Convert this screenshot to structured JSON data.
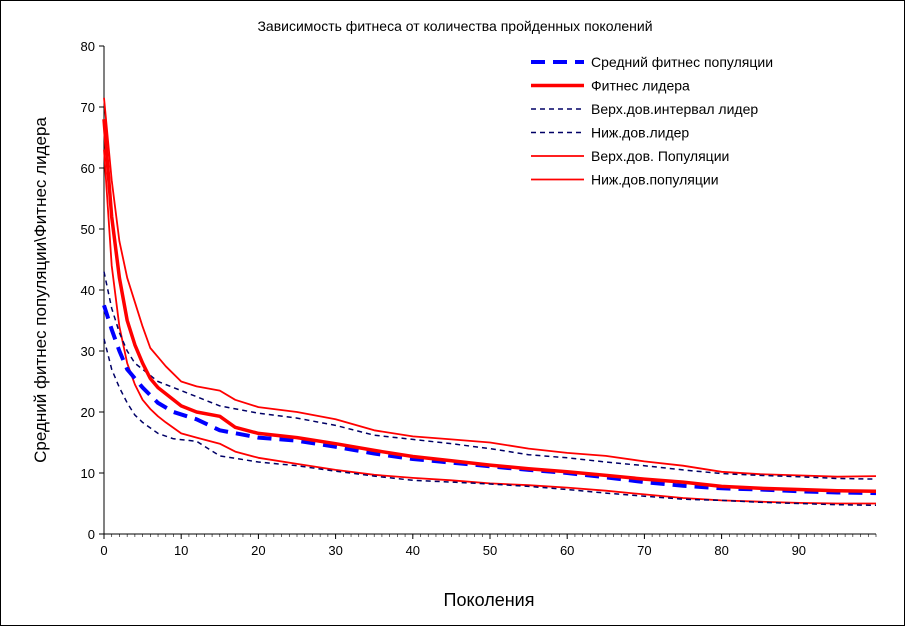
{
  "chart_data": {
    "type": "line",
    "title": "Зависимость фитнеса от количества пройденных поколений",
    "xlabel": "Поколения",
    "ylabel": "Средний фитнес популяции\\Фитнес лидера",
    "xlim": [
      0,
      100
    ],
    "ylim": [
      0,
      80
    ],
    "xticks": [
      "0",
      "10",
      "20",
      "30",
      "40",
      "50",
      "60",
      "70",
      "80",
      "90"
    ],
    "yticks": [
      "0",
      "10",
      "20",
      "30",
      "40",
      "50",
      "60",
      "70",
      "80"
    ],
    "grid": false,
    "legend_position": "top-right",
    "series": [
      {
        "name": "Средний фитнес популяции",
        "color": "#0000ff",
        "style": "dashed-thick",
        "x": [
          0,
          1,
          2,
          3,
          5,
          7,
          9,
          12,
          15,
          20,
          25,
          30,
          35,
          40,
          45,
          50,
          55,
          60,
          65,
          70,
          75,
          80,
          85,
          90,
          95,
          100
        ],
        "y": [
          37.5,
          33.5,
          30,
          27,
          24,
          21.5,
          20,
          18.8,
          17,
          15.8,
          15.3,
          14.3,
          13.2,
          12.3,
          11.7,
          11.1,
          10.5,
          10,
          9.3,
          8.5,
          7.9,
          7.5,
          7.3,
          7.0,
          6.8,
          6.7
        ]
      },
      {
        "name": "Фитнес лидера",
        "color": "#ff0000",
        "style": "solid-thick",
        "x": [
          0,
          1,
          2,
          3,
          4,
          5,
          6,
          7,
          8,
          10,
          12,
          15,
          17,
          20,
          25,
          30,
          35,
          40,
          45,
          50,
          55,
          60,
          65,
          70,
          75,
          80,
          85,
          90,
          95,
          100
        ],
        "y": [
          68,
          52,
          42,
          35,
          31,
          28,
          25.5,
          24,
          23,
          21,
          20,
          19.3,
          17.5,
          16.5,
          15.8,
          14.8,
          13.7,
          12.7,
          12,
          11.3,
          10.7,
          10.2,
          9.6,
          9,
          8.5,
          7.8,
          7.5,
          7.3,
          7.1,
          7.0
        ]
      },
      {
        "name": "Верх.дов.интервал лидер",
        "color": "#000066",
        "style": "dashed-thin",
        "x": [
          0,
          1,
          2,
          3,
          4,
          5,
          7,
          10,
          15,
          20,
          25,
          30,
          35,
          40,
          45,
          50,
          55,
          60,
          65,
          70,
          75,
          80,
          85,
          90,
          95,
          100
        ],
        "y": [
          43,
          37,
          33,
          30,
          28,
          27,
          25,
          23.5,
          21,
          19.8,
          19,
          17.8,
          16.2,
          15.5,
          14.8,
          14,
          13,
          12.5,
          11.8,
          11.2,
          10.5,
          9.9,
          9.6,
          9.4,
          9.1,
          9.0
        ]
      },
      {
        "name": "Ниж.дов.лидер",
        "color": "#000066",
        "style": "dashed-thin",
        "x": [
          0,
          1,
          2,
          3,
          4,
          5,
          7,
          9,
          12,
          15,
          20,
          25,
          30,
          35,
          40,
          45,
          50,
          55,
          60,
          65,
          70,
          75,
          80,
          85,
          90,
          95,
          100
        ],
        "y": [
          32,
          27,
          24,
          21.5,
          19.5,
          18.3,
          16.5,
          15.6,
          15.2,
          12.8,
          11.8,
          11.2,
          10.3,
          9.5,
          8.8,
          8.5,
          8.2,
          7.8,
          7.3,
          6.7,
          6.2,
          5.7,
          5.5,
          5.2,
          5.0,
          4.8,
          4.7
        ]
      },
      {
        "name": "Верх.дов. Популяции",
        "color": "#ff0000",
        "style": "solid-thin",
        "x": [
          0,
          1,
          2,
          3,
          4,
          5,
          6,
          7,
          8,
          10,
          12,
          15,
          17,
          20,
          25,
          30,
          35,
          40,
          45,
          50,
          55,
          60,
          65,
          70,
          75,
          80,
          85,
          90,
          95,
          100
        ],
        "y": [
          71.5,
          58,
          48,
          42,
          38,
          34,
          30.5,
          29,
          27.5,
          25,
          24.2,
          23.5,
          22,
          20.8,
          20,
          18.8,
          17,
          16,
          15.5,
          15,
          14,
          13.3,
          12.8,
          11.9,
          11.2,
          10.2,
          9.8,
          9.6,
          9.4,
          9.5
        ]
      },
      {
        "name": "Ниж.дов.популяции",
        "color": "#ff0000",
        "style": "solid-thin",
        "x": [
          0,
          1,
          2,
          3,
          4,
          5,
          6,
          7,
          8,
          10,
          12,
          15,
          17,
          20,
          25,
          30,
          35,
          40,
          45,
          50,
          55,
          60,
          65,
          70,
          75,
          80,
          85,
          90,
          95,
          100
        ],
        "y": [
          63,
          44,
          34,
          28,
          24.5,
          22,
          20.5,
          19.3,
          18.3,
          16.5,
          15.8,
          14.8,
          13.5,
          12.5,
          11.5,
          10.5,
          9.7,
          9.2,
          8.8,
          8.3,
          8.0,
          7.6,
          7.1,
          6.5,
          5.9,
          5.5,
          5.3,
          5.1,
          5.0,
          5.0
        ]
      }
    ]
  }
}
